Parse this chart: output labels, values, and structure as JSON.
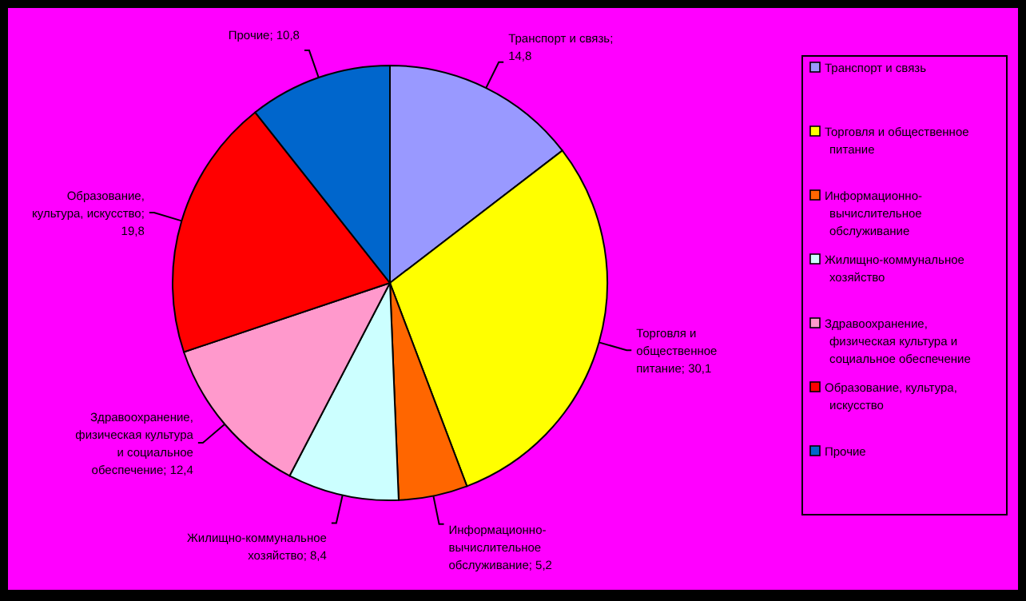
{
  "chart_data": {
    "type": "pie",
    "categories": [
      "Транспорт и связь",
      "Торговля и общественное питание",
      "Информационно-вычислительное обслуживание",
      "Жилищно-коммунальное хозяйство",
      "Здравоохранение, физическая культура и социальное обеспечение",
      "Образование, культура, искусство",
      "Прочие"
    ],
    "values": [
      14.8,
      30.1,
      5.2,
      8.4,
      12.4,
      19.8,
      10.8
    ],
    "value_labels": [
      "; 14,8",
      "; 30,1",
      "; 5,2",
      "; 8,4",
      "; 12,4",
      "; 19,8",
      "; 10,8"
    ],
    "colors": [
      "#9999ff",
      "#ffff00",
      "#ff6600",
      "#ccffff",
      "#ff99cc",
      "#ff0000",
      "#0066cc"
    ],
    "legend": "right"
  }
}
